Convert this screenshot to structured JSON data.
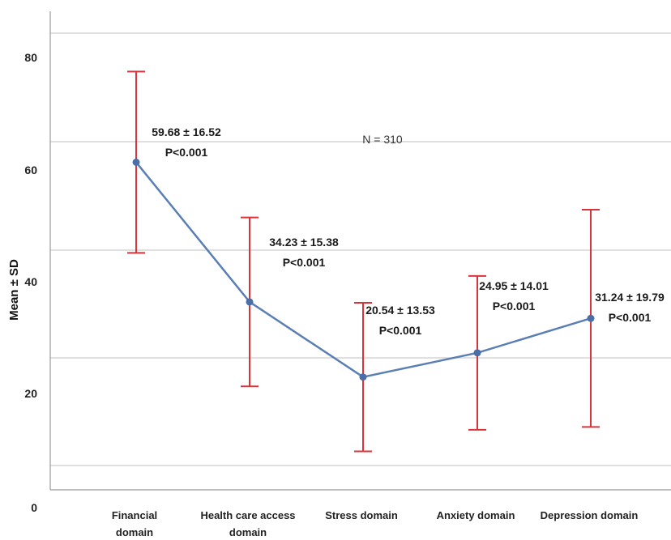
{
  "chart_data": {
    "type": "line",
    "ylabel": "Mean ± SD",
    "ylim": [
      0,
      88
    ],
    "yticks": [
      "0",
      "20",
      "40",
      "60",
      "80"
    ],
    "grid": true,
    "annotation": "N = 310",
    "categories": [
      [
        "Financial",
        "domain"
      ],
      [
        "Health care access",
        "domain"
      ],
      [
        "Stress domain"
      ],
      [
        "Anxiety domain"
      ],
      [
        "Depression domain"
      ]
    ],
    "means": [
      59.68,
      34.23,
      20.54,
      24.95,
      31.24
    ],
    "sds": [
      16.52,
      15.38,
      13.53,
      14.01,
      19.79
    ],
    "labels": [
      [
        "59.68 ± 16.52",
        "P<0.001"
      ],
      [
        "34.23 ± 15.38",
        "P<0.001"
      ],
      [
        "20.54 ± 13.53",
        "P<0.001"
      ],
      [
        "24.95 ± 14.01",
        "P<0.001"
      ],
      [
        "31.24 ± 19.79",
        "P<0.001"
      ]
    ],
    "colors": {
      "line": "#5b7fb5",
      "point": "#4a6ea8",
      "errorbar": "#d9343a",
      "grid": "#cccccc",
      "axis": "#999999"
    }
  }
}
